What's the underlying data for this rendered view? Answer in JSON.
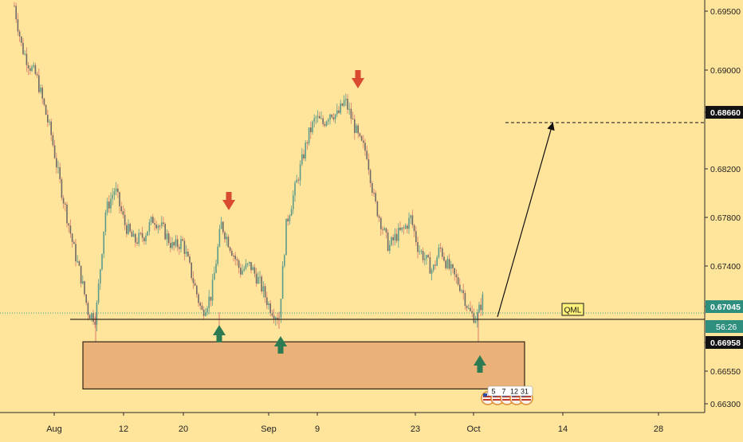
{
  "colors": {
    "background": "#ffe49b",
    "candle": "#6f6a66",
    "candle_up": "#5d9c8c",
    "candle_down": "#d97b6d",
    "support_line": "#3a2f1f",
    "zone_fill": "#eab279",
    "zone_border": "#2e2214",
    "arrow_down": "#d94b31",
    "arrow_up": "#2d7b52",
    "current_price_line": "#3aa38f",
    "current_price_bg": "#2f8f7f",
    "target_bg": "#121212"
  },
  "chart_data": {
    "type": "candlestick",
    "instrument_note": "",
    "x": {
      "labels": [
        "Aug",
        "12",
        "20",
        "Sep",
        "9",
        "23",
        "Oct",
        "14",
        "28"
      ]
    },
    "y": {
      "range": [
        0.662,
        0.697
      ],
      "ticks": [
        "0.69500",
        "0.69000",
        "0.68660",
        "0.68200",
        "0.67800",
        "0.67400",
        "0.67045",
        "0.66958",
        "0.66550",
        "0.66300"
      ],
      "tick_values": [
        0.695,
        0.69,
        0.6866,
        0.682,
        0.678,
        0.674,
        0.67045,
        0.66958,
        0.6655,
        0.663
      ]
    },
    "price_path": [
      [
        0.6965,
        0.693,
        0.6915,
        0.6905,
        0.688,
        0.6855,
        0.682,
        0.679,
        0.676,
        0.6735,
        0.6705,
        0.67
      ],
      [
        0.6735,
        0.679,
        0.681,
        0.678,
        0.6765,
        0.677,
        0.6785,
        0.6775,
        0.676,
        0.6765,
        0.6735,
        0.6705,
        0.672,
        0.678,
        0.676,
        0.674,
        0.6745,
        0.673,
        0.671,
        0.67
      ],
      [
        0.672,
        0.678,
        0.6805,
        0.683,
        0.6855,
        0.687,
        0.6865,
        0.6875,
        0.6872,
        0.6885,
        0.6868,
        0.685,
        0.684,
        0.68,
        0.678,
        0.676,
        0.677,
        0.6775,
        0.6785,
        0.676,
        0.675,
        0.674,
        0.676,
        0.6745,
        0.6735,
        0.6725,
        0.6705,
        0.67,
        0.672
      ]
    ],
    "current_price": 0.67045,
    "current_price_label": "0.67045",
    "countdown_label": "56:26",
    "target_price": 0.6866,
    "target_label": "0.68660",
    "support_level": 0.66958,
    "support_label": "0.66958",
    "demand_zone": [
      0.664,
      0.668
    ],
    "annotations": [
      {
        "type": "text-box",
        "text": "QML"
      },
      {
        "type": "arrow-down",
        "at": "swing high 1"
      },
      {
        "type": "arrow-down",
        "at": "swing high 2"
      },
      {
        "type": "arrow-up",
        "at": "low 1"
      },
      {
        "type": "arrow-up",
        "at": "low 2"
      },
      {
        "type": "arrow-up",
        "at": "low 3"
      }
    ],
    "event_badges": [
      "5",
      "7",
      "12",
      "31"
    ],
    "grid": false,
    "legend": "none"
  }
}
